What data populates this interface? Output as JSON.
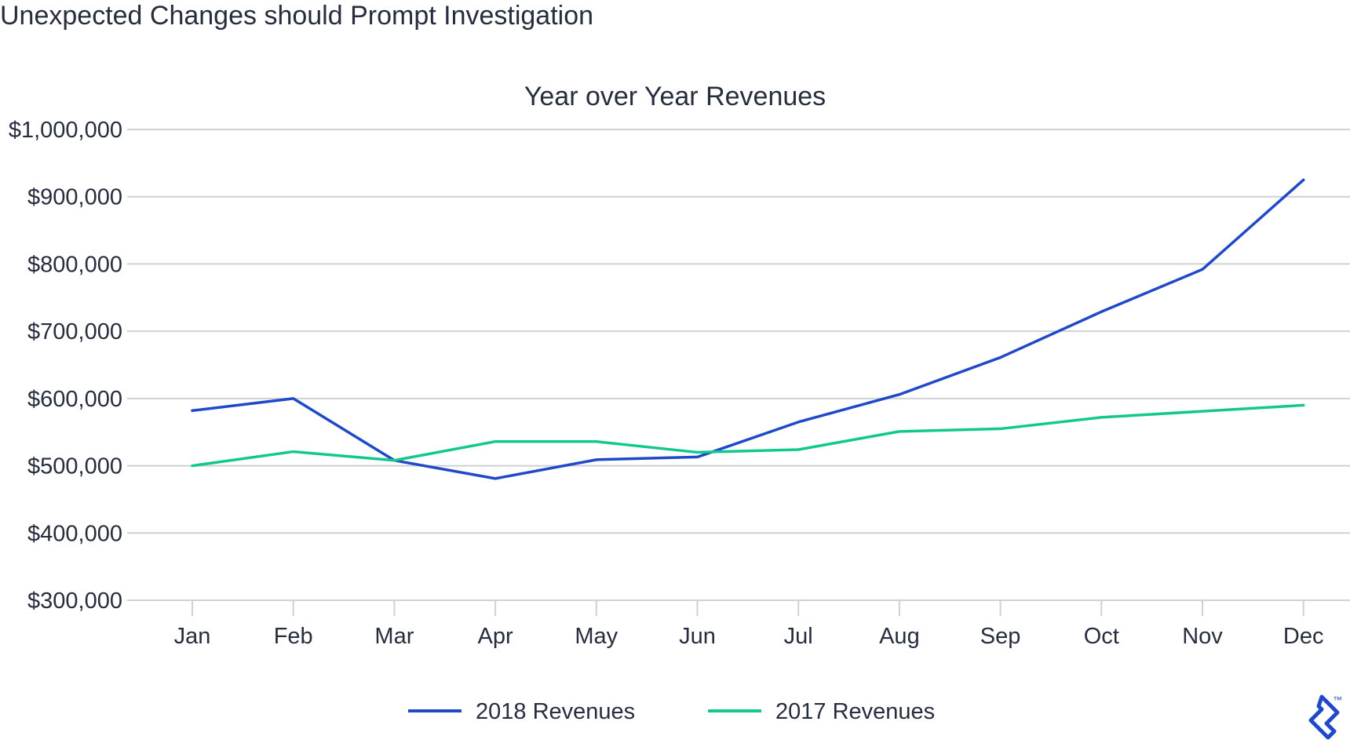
{
  "heading": "Unexpected Changes should Prompt Investigation",
  "chart_data": {
    "type": "line",
    "title": "Year over Year Revenues",
    "xlabel": "",
    "ylabel": "",
    "categories": [
      "Jan",
      "Feb",
      "Mar",
      "Apr",
      "May",
      "Jun",
      "Jul",
      "Aug",
      "Sep",
      "Oct",
      "Nov",
      "Dec"
    ],
    "ylim": [
      300000,
      1000000
    ],
    "yticks": [
      300000,
      400000,
      500000,
      600000,
      700000,
      800000,
      900000,
      1000000
    ],
    "ytick_labels": [
      "$300,000",
      "$400,000",
      "$500,000",
      "$600,000",
      "$700,000",
      "$800,000",
      "$900,000",
      "$1,000,000"
    ],
    "grid": true,
    "legend_position": "bottom-center",
    "series": [
      {
        "name": "2018 Revenues",
        "color": "#2049c8",
        "values": [
          582000,
          600000,
          508000,
          481000,
          509000,
          513000,
          565000,
          606000,
          661000,
          729000,
          792000,
          925000
        ]
      },
      {
        "name": "2017 Revenues",
        "color": "#13c88e",
        "values": [
          500000,
          521000,
          508000,
          536000,
          536000,
          520000,
          524000,
          551000,
          555000,
          572000,
          581000,
          590000
        ]
      }
    ]
  },
  "logo_icon": "toptal-logo-icon",
  "trademark": "™"
}
